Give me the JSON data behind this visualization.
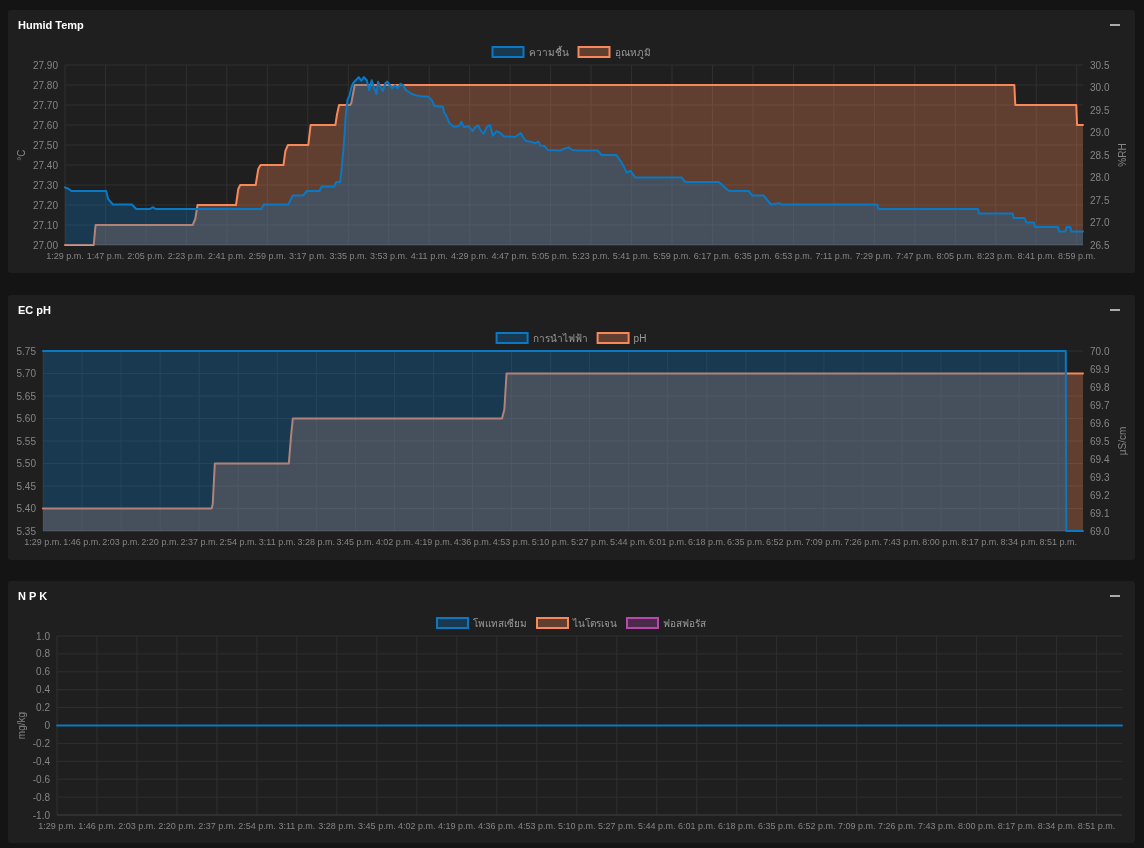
{
  "chart_data": [
    {
      "type": "area",
      "title": "Humid Temp",
      "ylabel": "°C",
      "y2label": "%RH",
      "legend": "top",
      "grid": true,
      "xlim": [
        13.4833,
        21.03
      ],
      "xticks": [
        {
          "value": 13.4833,
          "label": "1:29 p.m."
        },
        {
          "value": 13.7833,
          "label": "1:47 p.m."
        },
        {
          "value": 14.0833,
          "label": "2:05 p.m."
        },
        {
          "value": 14.3833,
          "label": "2:23 p.m."
        },
        {
          "value": 14.6833,
          "label": "2:41 p.m."
        },
        {
          "value": 14.9833,
          "label": "2:59 p.m."
        },
        {
          "value": 15.2833,
          "label": "3:17 p.m."
        },
        {
          "value": 15.5833,
          "label": "3:35 p.m."
        },
        {
          "value": 15.8833,
          "label": "3:53 p.m."
        },
        {
          "value": 16.1833,
          "label": "4:11 p.m."
        },
        {
          "value": 16.4833,
          "label": "4:29 p.m."
        },
        {
          "value": 16.7833,
          "label": "4:47 p.m."
        },
        {
          "value": 17.0833,
          "label": "5:05 p.m."
        },
        {
          "value": 17.3833,
          "label": "5:23 p.m."
        },
        {
          "value": 17.6833,
          "label": "5:41 p.m."
        },
        {
          "value": 17.9833,
          "label": "5:59 p.m."
        },
        {
          "value": 18.2833,
          "label": "6:17 p.m."
        },
        {
          "value": 18.5833,
          "label": "6:35 p.m."
        },
        {
          "value": 18.8833,
          "label": "6:53 p.m."
        },
        {
          "value": 19.1833,
          "label": "7:11 p.m."
        },
        {
          "value": 19.4833,
          "label": "7:29 p.m."
        },
        {
          "value": 19.7833,
          "label": "7:47 p.m."
        },
        {
          "value": 20.0833,
          "label": "8:05 p.m."
        },
        {
          "value": 20.3833,
          "label": "8:23 p.m."
        },
        {
          "value": 20.6833,
          "label": "8:41 p.m."
        },
        {
          "value": 20.9833,
          "label": "8:59 p.m."
        }
      ],
      "ylim": [
        27.0,
        27.9
      ],
      "yticks": [
        {
          "value": 27.0,
          "label": "27.00"
        },
        {
          "value": 27.1,
          "label": "27.10"
        },
        {
          "value": 27.2,
          "label": "27.20"
        },
        {
          "value": 27.3,
          "label": "27.30"
        },
        {
          "value": 27.4,
          "label": "27.40"
        },
        {
          "value": 27.5,
          "label": "27.50"
        },
        {
          "value": 27.6,
          "label": "27.60"
        },
        {
          "value": 27.7,
          "label": "27.70"
        },
        {
          "value": 27.8,
          "label": "27.80"
        },
        {
          "value": 27.9,
          "label": "27.90"
        }
      ],
      "y2lim": [
        26.5,
        30.5
      ],
      "y2ticks": [
        26.5,
        {
          "value": 27.0,
          "label": "27.0"
        },
        27.5,
        {
          "value": 28.0,
          "label": "28.0"
        },
        28.5,
        {
          "value": 29.0,
          "label": "29.0"
        },
        29.5,
        {
          "value": 30.0,
          "label": "30.0"
        },
        30.5
      ],
      "series": [
        {
          "name": "ความชื้น",
          "color": "#0a78c2",
          "axis": "y2",
          "x": [
            13.4833,
            13.509,
            13.531,
            13.789,
            13.803,
            13.839,
            13.979,
            14.012,
            14.114,
            14.133,
            14.155,
            14.938,
            14.957,
            15.139,
            15.172,
            15.249,
            15.276,
            15.37,
            15.386,
            15.479,
            15.493,
            15.523,
            15.534,
            15.551,
            15.565,
            15.578,
            15.592,
            15.606,
            15.62,
            15.639,
            15.661,
            15.68,
            15.699,
            15.721,
            15.738,
            15.757,
            15.776,
            15.793,
            15.804,
            15.82,
            15.839,
            15.859,
            15.872,
            15.886,
            15.908,
            15.93,
            15.949,
            15.969,
            15.991,
            16.01,
            16.032,
            16.051,
            16.092,
            16.133,
            16.175,
            16.202,
            16.221,
            16.285,
            16.293,
            16.312,
            16.334,
            16.367,
            16.403,
            16.422,
            16.441,
            16.477,
            16.504,
            16.524,
            16.546,
            16.568,
            16.587,
            16.609,
            16.634,
            16.655,
            16.683,
            16.71,
            16.738,
            16.779,
            16.82,
            16.862,
            16.884,
            16.903,
            16.944,
            16.972,
            16.991,
            17.007,
            17.04,
            17.062,
            17.156,
            17.184,
            17.217,
            17.244,
            17.28,
            17.432,
            17.46,
            17.571,
            17.612,
            17.648,
            17.676,
            17.709,
            18.054,
            18.082,
            18.33,
            18.372,
            18.405,
            18.551,
            18.579,
            18.662,
            18.717,
            18.773,
            18.8,
            19.505,
            19.513,
            20.251,
            20.259,
            20.508,
            20.516,
            20.596,
            20.61,
            20.665,
            20.674,
            20.845,
            20.853,
            20.9,
            20.908,
            20.936,
            20.944,
            21.03
          ],
          "values": [
            27.78,
            27.75,
            27.7,
            27.7,
            27.52,
            27.4,
            27.4,
            27.3,
            27.3,
            27.34,
            27.3,
            27.3,
            27.4,
            27.4,
            27.6,
            27.6,
            27.7,
            27.7,
            27.8,
            27.8,
            27.9,
            27.9,
            28.19,
            28.75,
            29.41,
            29.73,
            29.82,
            30.0,
            30.1,
            30.16,
            30.23,
            30.15,
            30.23,
            30.16,
            29.94,
            30.16,
            29.98,
            29.86,
            30.13,
            30.02,
            29.92,
            30.1,
            30.13,
            30.08,
            29.98,
            30.05,
            29.98,
            30.08,
            30.05,
            29.94,
            29.9,
            29.86,
            29.82,
            29.8,
            29.8,
            29.72,
            29.59,
            29.57,
            29.45,
            29.36,
            29.2,
            29.13,
            29.14,
            29.24,
            29.12,
            29.14,
            29.03,
            29.12,
            29.16,
            29.03,
            28.97,
            29.12,
            29.17,
            28.93,
            29.03,
            28.99,
            28.91,
            28.91,
            28.9,
            28.99,
            28.87,
            28.81,
            28.79,
            28.76,
            28.8,
            28.71,
            28.7,
            28.61,
            28.6,
            28.64,
            28.67,
            28.61,
            28.6,
            28.6,
            28.5,
            28.5,
            28.32,
            28.11,
            28.15,
            28.0,
            28.0,
            27.9,
            27.9,
            27.79,
            27.7,
            27.7,
            27.6,
            27.6,
            27.4,
            27.43,
            27.4,
            27.4,
            27.3,
            27.3,
            27.2,
            27.2,
            27.1,
            27.1,
            27.0,
            27.0,
            26.9,
            26.9,
            26.8,
            26.8,
            26.9,
            26.9,
            26.8,
            26.8
          ]
        },
        {
          "name": "อุณหภูมิ",
          "color": "#f8875a",
          "x": [
            13.4833,
            13.696,
            13.71,
            14.43,
            14.449,
            14.466,
            14.751,
            14.768,
            14.782,
            14.897,
            14.916,
            14.933,
            15.103,
            15.117,
            15.136,
            15.287,
            15.304,
            15.488,
            15.499,
            15.515,
            15.598,
            15.606,
            15.631,
            20.521,
            20.528,
            20.98,
            20.986,
            21.03
          ],
          "values": [
            27.0,
            27.0,
            27.1,
            27.1,
            27.13,
            27.2,
            27.2,
            27.28,
            27.3,
            27.3,
            27.38,
            27.4,
            27.4,
            27.47,
            27.5,
            27.5,
            27.6,
            27.6,
            27.65,
            27.7,
            27.7,
            27.71,
            27.8,
            27.8,
            27.7,
            27.7,
            27.6,
            27.6
          ]
        }
      ]
    },
    {
      "type": "area",
      "title": "EC pH",
      "y2label": "µS/cm",
      "legend": "top",
      "grid": true,
      "xlim": [
        13.4833,
        21.03
      ],
      "xticks": [
        {
          "value": 13.4833,
          "label": "1:29 p.m."
        },
        {
          "value": 13.7667,
          "label": "1:46 p.m."
        },
        {
          "value": 14.05,
          "label": "2:03 p.m."
        },
        {
          "value": 14.3333,
          "label": "2:20 p.m."
        },
        {
          "value": 14.6167,
          "label": "2:37 p.m."
        },
        {
          "value": 14.9,
          "label": "2:54 p.m."
        },
        {
          "value": 15.1833,
          "label": "3:11 p.m."
        },
        {
          "value": 15.4667,
          "label": "3:28 p.m."
        },
        {
          "value": 15.75,
          "label": "3:45 p.m."
        },
        {
          "value": 16.0333,
          "label": "4:02 p.m."
        },
        {
          "value": 16.3167,
          "label": "4:19 p.m."
        },
        {
          "value": 16.6,
          "label": "4:36 p.m."
        },
        {
          "value": 16.8833,
          "label": "4:53 p.m."
        },
        {
          "value": 17.1667,
          "label": "5:10 p.m."
        },
        {
          "value": 17.45,
          "label": "5:27 p.m."
        },
        {
          "value": 17.7333,
          "label": "5:44 p.m."
        },
        {
          "value": 18.0167,
          "label": "6:01 p.m."
        },
        {
          "value": 18.3,
          "label": "6:18 p.m."
        },
        {
          "value": 18.5833,
          "label": "6:35 p.m."
        },
        {
          "value": 18.8667,
          "label": "6:52 p.m."
        },
        {
          "value": 19.15,
          "label": "7:09 p.m."
        },
        {
          "value": 19.4333,
          "label": "7:26 p.m."
        },
        {
          "value": 19.7167,
          "label": "7:43 p.m."
        },
        {
          "value": 20.0,
          "label": "8:00 p.m."
        },
        {
          "value": 20.2833,
          "label": "8:17 p.m."
        },
        {
          "value": 20.5667,
          "label": "8:34 p.m."
        },
        {
          "value": 20.85,
          "label": "8:51 p.m."
        }
      ],
      "ylim": [
        5.35,
        5.75
      ],
      "yticks": [
        5.35,
        {
          "value": 5.4,
          "label": "5.40"
        },
        5.45,
        {
          "value": 5.5,
          "label": "5.50"
        },
        5.55,
        {
          "value": 5.6,
          "label": "5.60"
        },
        5.65,
        {
          "value": 5.7,
          "label": "5.70"
        },
        5.75
      ],
      "y2lim": [
        69.0,
        70.0
      ],
      "y2ticks": [
        {
          "value": 69.0,
          "label": "69.0"
        },
        69.1,
        69.2,
        69.3,
        69.4,
        69.5,
        69.6,
        69.7,
        69.8,
        69.9,
        {
          "value": 70.0,
          "label": "70.0"
        }
      ],
      "series": [
        {
          "name": "การนำไฟฟ้า",
          "color": "#0a78c2",
          "axis": "y2",
          "x": [
            13.4833,
            20.905,
            20.909,
            21.03
          ],
          "values": [
            70.0,
            70.0,
            69.0,
            69.0
          ]
        },
        {
          "name": "pH",
          "color": "#f8875a",
          "x": [
            13.4833,
            14.707,
            14.715,
            14.73,
            15.267,
            15.283,
            15.296,
            16.814,
            16.831,
            16.847,
            21.03
          ],
          "values": [
            5.4,
            5.4,
            5.41,
            5.5,
            5.5,
            5.56,
            5.6,
            5.6,
            5.62,
            5.7,
            5.7
          ]
        }
      ]
    },
    {
      "type": "line",
      "title": "N P K",
      "ylabel": "mg/kg",
      "legend": "top",
      "grid": true,
      "xlim": [
        13.4833,
        21.03
      ],
      "xticks": [
        {
          "value": 13.4833,
          "label": "1:29 p.m."
        },
        {
          "value": 13.7667,
          "label": "1:46 p.m."
        },
        {
          "value": 14.05,
          "label": "2:03 p.m."
        },
        {
          "value": 14.3333,
          "label": "2:20 p.m."
        },
        {
          "value": 14.6167,
          "label": "2:37 p.m."
        },
        {
          "value": 14.9,
          "label": "2:54 p.m."
        },
        {
          "value": 15.1833,
          "label": "3:11 p.m."
        },
        {
          "value": 15.4667,
          "label": "3:28 p.m."
        },
        {
          "value": 15.75,
          "label": "3:45 p.m."
        },
        {
          "value": 16.0333,
          "label": "4:02 p.m."
        },
        {
          "value": 16.3167,
          "label": "4:19 p.m."
        },
        {
          "value": 16.6,
          "label": "4:36 p.m."
        },
        {
          "value": 16.8833,
          "label": "4:53 p.m."
        },
        {
          "value": 17.1667,
          "label": "5:10 p.m."
        },
        {
          "value": 17.45,
          "label": "5:27 p.m."
        },
        {
          "value": 17.7333,
          "label": "5:44 p.m."
        },
        {
          "value": 18.0167,
          "label": "6:01 p.m."
        },
        {
          "value": 18.3,
          "label": "6:18 p.m."
        },
        {
          "value": 18.5833,
          "label": "6:35 p.m."
        },
        {
          "value": 18.8667,
          "label": "6:52 p.m."
        },
        {
          "value": 19.15,
          "label": "7:09 p.m."
        },
        {
          "value": 19.4333,
          "label": "7:26 p.m."
        },
        {
          "value": 19.7167,
          "label": "7:43 p.m."
        },
        {
          "value": 20.0,
          "label": "8:00 p.m."
        },
        {
          "value": 20.2833,
          "label": "8:17 p.m."
        },
        {
          "value": 20.5667,
          "label": "8:34 p.m."
        },
        {
          "value": 20.85,
          "label": "8:51 p.m."
        }
      ],
      "ylim": [
        -1.0,
        1.0
      ],
      "yticks": [
        {
          "value": -1.0,
          "label": "-1.0"
        },
        -0.8,
        -0.6,
        -0.4,
        -0.2,
        0,
        0.2,
        0.4,
        0.6,
        0.8,
        {
          "value": 1.0,
          "label": "1.0"
        }
      ],
      "series": [
        {
          "name": "โพแทสเซียม",
          "color": "#0a78c2",
          "x": [
            13.4833,
            21.03
          ],
          "values": [
            0,
            0
          ]
        },
        {
          "name": "ไนโตรเจน",
          "color": "#f8875a",
          "values": [
            null,
            null
          ]
        },
        {
          "name": "ฟอสฟอรัส",
          "color": "#b549b0",
          "values": [
            null,
            null
          ]
        }
      ]
    }
  ]
}
